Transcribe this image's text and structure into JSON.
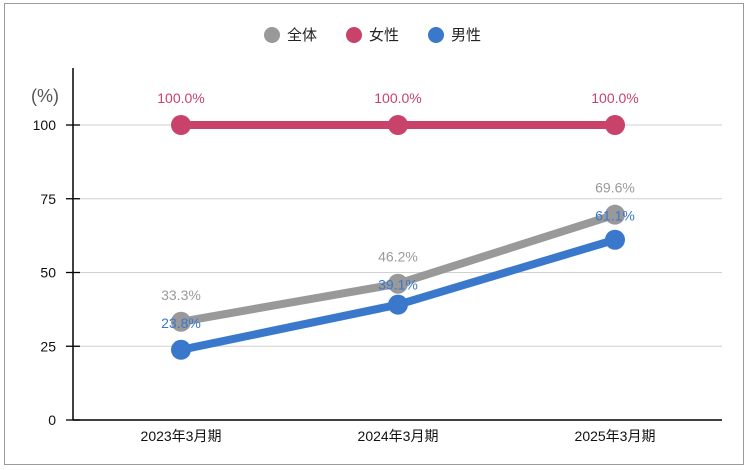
{
  "chart_data": {
    "type": "line",
    "categories": [
      "2023年3月期",
      "2024年3月期",
      "2025年3月期"
    ],
    "ylabel": "(%)",
    "ylim": [
      0,
      100
    ],
    "yticks": [
      0,
      25,
      50,
      75,
      100
    ],
    "grid": true,
    "legend_position": "top",
    "series": [
      {
        "name": "全体",
        "color": "#999999",
        "values": [
          33.3,
          46.2,
          69.6
        ],
        "labels": [
          "33.3%",
          "46.2%",
          "69.6%"
        ]
      },
      {
        "name": "女性",
        "color": "#c8426a",
        "values": [
          100.0,
          100.0,
          100.0
        ],
        "labels": [
          "100.0%",
          "100.0%",
          "100.0%"
        ]
      },
      {
        "name": "男性",
        "color": "#3a78cc",
        "values": [
          23.8,
          39.1,
          61.1
        ],
        "labels": [
          "23.8%",
          "39.1%",
          "61.1%"
        ]
      }
    ]
  }
}
